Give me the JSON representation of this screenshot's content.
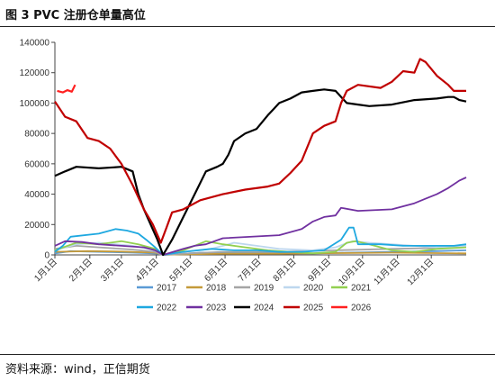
{
  "figure": {
    "title": "图 3 PVC 注册仓单量高位",
    "source": "资料来源：wind，正信期货"
  },
  "chart_data": {
    "type": "line",
    "title": "",
    "xlabel": "",
    "ylabel": "",
    "ylim": [
      0,
      140000
    ],
    "yticks": [
      0,
      20000,
      40000,
      60000,
      80000,
      100000,
      120000,
      140000
    ],
    "xlim": [
      1,
      366
    ],
    "xtick_labels": [
      "1月1日",
      "2月1日",
      "3月1日",
      "4月1日",
      "5月1日",
      "6月1日",
      "7月1日",
      "8月1日",
      "9月1日",
      "10月1日",
      "11月1日",
      "12月1日"
    ],
    "xtick_days": [
      1,
      32,
      60,
      91,
      121,
      152,
      182,
      213,
      244,
      274,
      305,
      335
    ],
    "grid": false,
    "legend_position": "bottom",
    "series": [
      {
        "name": "2017",
        "color": "#5b9bd5",
        "x": [
          1,
          15,
          40,
          70,
          90,
          97,
          110,
          130,
          170,
          230,
          260,
          300,
          340,
          366
        ],
        "y": [
          1000,
          2500,
          2000,
          1500,
          1000,
          0,
          500,
          1500,
          1500,
          1000,
          1500,
          2000,
          2500,
          3000
        ]
      },
      {
        "name": "2018",
        "color": "#c49a3a",
        "x": [
          1,
          30,
          60,
          90,
          97,
          110,
          150,
          200,
          250,
          300,
          366
        ],
        "y": [
          2000,
          2500,
          2200,
          1500,
          0,
          300,
          800,
          800,
          1200,
          1500,
          1000
        ]
      },
      {
        "name": "2019",
        "color": "#a5a5a5",
        "x": [
          1,
          20,
          40,
          70,
          90,
          97,
          120,
          150,
          200,
          250,
          300,
          366
        ],
        "y": [
          4000,
          6000,
          5000,
          3500,
          2000,
          0,
          1000,
          2000,
          2000,
          3000,
          4000,
          5000
        ]
      },
      {
        "name": "2020",
        "color": "#bdd7ee",
        "x": [
          1,
          20,
          40,
          70,
          90,
          97,
          115,
          140,
          160,
          180,
          200,
          230,
          250,
          265,
          280,
          300,
          320,
          340,
          366
        ],
        "y": [
          3000,
          7000,
          8000,
          6000,
          3000,
          0,
          2000,
          4000,
          8000,
          6000,
          4000,
          3000,
          5000,
          9000,
          8000,
          7000,
          6000,
          5000,
          6000
        ]
      },
      {
        "name": "2021",
        "color": "#92d050",
        "x": [
          1,
          20,
          40,
          60,
          75,
          90,
          97,
          115,
          135,
          150,
          170,
          190,
          210,
          230,
          250,
          260,
          268,
          280,
          300,
          320,
          340,
          366
        ],
        "y": [
          3000,
          8000,
          7000,
          9000,
          7000,
          4000,
          0,
          3000,
          9000,
          7000,
          5000,
          3000,
          2000,
          1000,
          2000,
          8000,
          9000,
          7000,
          3000,
          2000,
          4000,
          5000
        ]
      },
      {
        "name": "2022",
        "color": "#1ea8e0",
        "x": [
          1,
          8,
          15,
          40,
          55,
          65,
          75,
          82,
          90,
          97,
          115,
          140,
          160,
          180,
          200,
          220,
          240,
          255,
          262,
          266,
          270,
          290,
          310,
          330,
          355,
          366
        ],
        "y": [
          2000,
          6000,
          12000,
          14000,
          17000,
          16000,
          14000,
          10000,
          5000,
          0,
          2000,
          4000,
          3000,
          3000,
          2000,
          2000,
          3000,
          10000,
          18000,
          18000,
          7000,
          7000,
          6000,
          6000,
          6000,
          7000
        ]
      },
      {
        "name": "2023",
        "color": "#7030a0",
        "x": [
          1,
          10,
          25,
          40,
          60,
          80,
          90,
          97,
          115,
          125,
          135,
          150,
          200,
          220,
          230,
          240,
          250,
          255,
          270,
          300,
          320,
          330,
          340,
          350,
          360,
          366
        ],
        "y": [
          6000,
          9000,
          8500,
          7000,
          6000,
          5000,
          3000,
          0,
          4000,
          6000,
          7000,
          11000,
          13000,
          17000,
          22000,
          25000,
          26000,
          31000,
          29000,
          30000,
          34000,
          37000,
          40000,
          44000,
          49000,
          51000
        ]
      },
      {
        "name": "2024",
        "color": "#000000",
        "x": [
          1,
          10,
          20,
          40,
          60,
          70,
          75,
          80,
          86,
          92,
          97,
          105,
          115,
          125,
          135,
          145,
          150,
          155,
          160,
          170,
          180,
          190,
          195,
          200,
          210,
          220,
          230,
          240,
          250,
          260,
          270,
          280,
          300,
          320,
          340,
          350,
          355,
          360,
          366
        ],
        "y": [
          52000,
          55000,
          58000,
          57000,
          58000,
          55000,
          40000,
          30000,
          20000,
          10000,
          0,
          10000,
          25000,
          40000,
          55000,
          58000,
          60000,
          66000,
          75000,
          80000,
          83000,
          92000,
          96000,
          100000,
          103000,
          107000,
          108000,
          109000,
          108000,
          100000,
          99000,
          98000,
          99000,
          102000,
          103000,
          104000,
          104000,
          102000,
          101000
        ]
      },
      {
        "name": "2025",
        "color": "#c00000",
        "x": [
          1,
          10,
          20,
          30,
          40,
          50,
          60,
          70,
          80,
          88,
          95,
          100,
          105,
          115,
          130,
          150,
          170,
          190,
          200,
          210,
          220,
          230,
          240,
          250,
          255,
          260,
          270,
          290,
          300,
          310,
          320,
          325,
          330,
          340,
          350,
          355,
          366
        ],
        "y": [
          101000,
          91000,
          88000,
          77000,
          75000,
          70000,
          60000,
          46000,
          30000,
          20000,
          8000,
          18000,
          28000,
          30000,
          36000,
          40000,
          43000,
          45000,
          47000,
          54000,
          62000,
          80000,
          85000,
          88000,
          100000,
          108000,
          112000,
          110000,
          114000,
          121000,
          120000,
          129000,
          127000,
          118000,
          112000,
          108000,
          108000
        ]
      },
      {
        "name": "2026",
        "color": "#ff2020",
        "x": [
          3,
          8,
          12,
          16,
          19
        ],
        "y": [
          108000,
          107000,
          108500,
          107500,
          112000
        ]
      }
    ]
  }
}
